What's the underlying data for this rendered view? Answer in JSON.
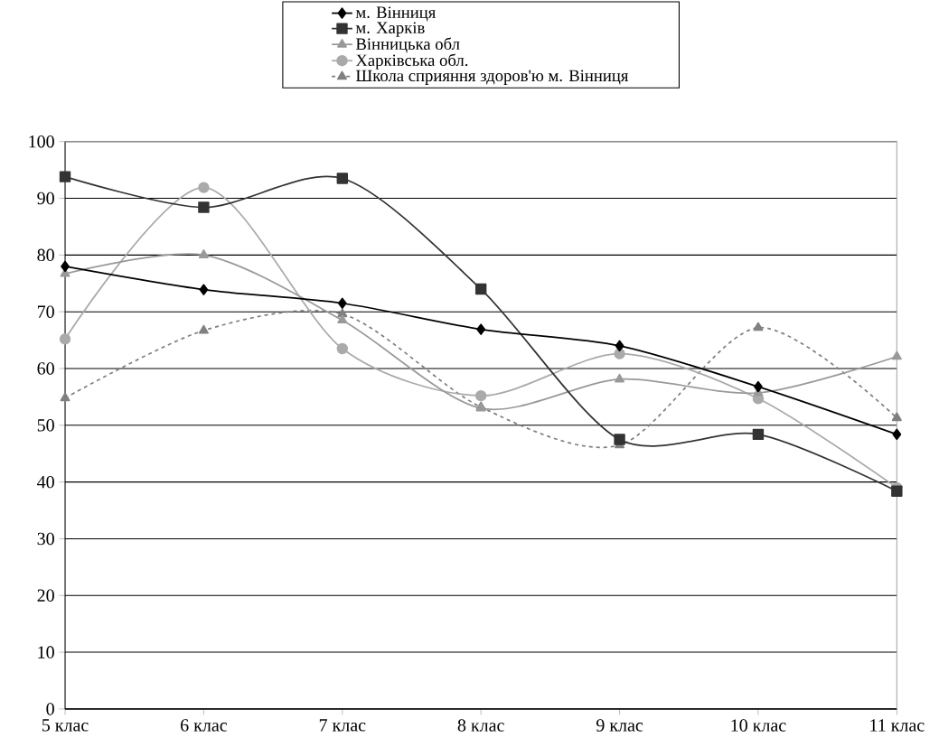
{
  "chart_data": {
    "type": "line",
    "categories": [
      "5 клас",
      "6 клас",
      "7 клас",
      "8 клас",
      "9 клас",
      "10 клас",
      "11 клас"
    ],
    "series": [
      {
        "name": "м. Вінниця",
        "color": "#000000",
        "marker": "diamond",
        "line_style": "solid",
        "values": [
          78.0,
          73.9,
          71.5,
          66.9,
          64.0,
          56.8,
          48.4
        ]
      },
      {
        "name": "м. Харків",
        "color": "#333333",
        "marker": "square",
        "line_style": "solid",
        "values": [
          93.8,
          88.4,
          93.5,
          74.0,
          47.5,
          48.4,
          38.4
        ]
      },
      {
        "name": "Вінницька обл",
        "color": "#999999",
        "marker": "triangle",
        "line_style": "solid",
        "values": [
          76.7,
          80.0,
          68.5,
          53.0,
          58.1,
          55.7,
          62.1
        ]
      },
      {
        "name": "Харківська обл.",
        "color": "#aaaaaa",
        "marker": "circle",
        "line_style": "solid",
        "values": [
          65.2,
          91.9,
          63.5,
          55.2,
          62.6,
          54.7,
          39.0
        ]
      },
      {
        "name": "Школа сприяння здоров'ю м. Вінниця",
        "color": "#808080",
        "marker": "triangle",
        "line_style": "dashed",
        "values": [
          54.8,
          66.7,
          69.6,
          53.2,
          46.5,
          67.2,
          51.3
        ]
      }
    ],
    "ylim": [
      0,
      100
    ],
    "yticks": [
      0,
      10,
      20,
      30,
      40,
      50,
      60,
      70,
      80,
      90,
      100
    ],
    "grid": "y",
    "legend": "top"
  }
}
